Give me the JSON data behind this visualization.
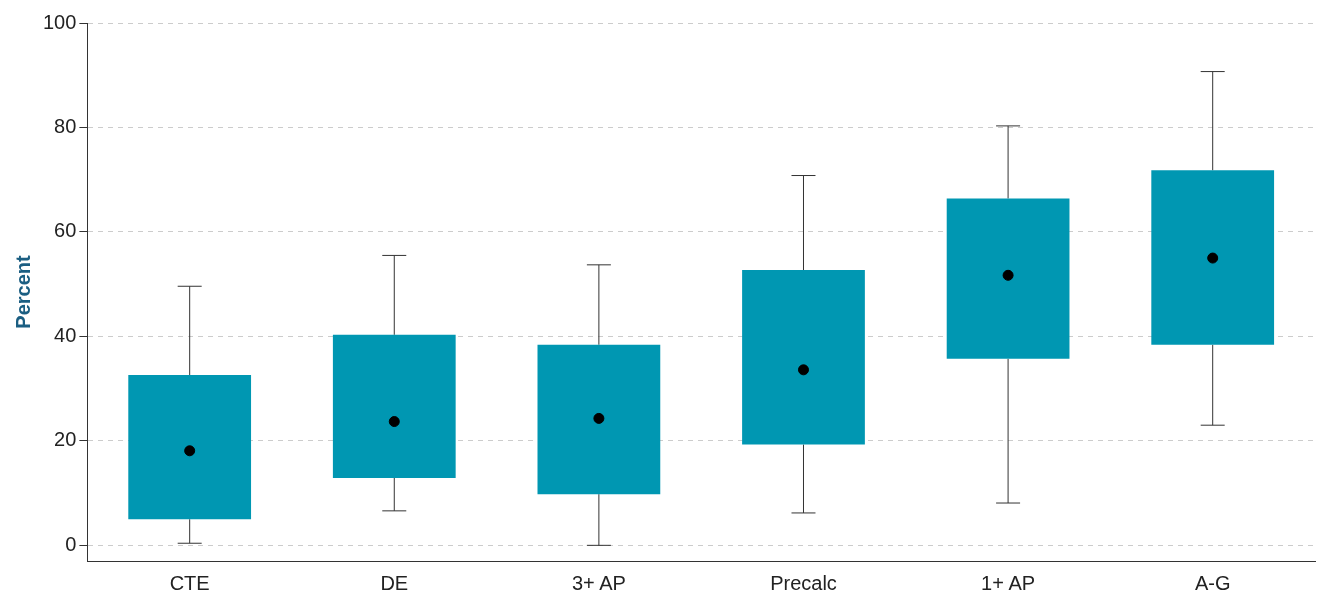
{
  "chart_data": {
    "type": "box",
    "ylabel": "Percent",
    "categories": [
      "CTE",
      "DE",
      "3+ AP",
      "Precalc",
      "1+ AP",
      "A-G"
    ],
    "color": "#0097b2",
    "boxes": [
      {
        "low": 0.4,
        "q1": 5,
        "median": 18.1,
        "q3": 32.6,
        "high": 49.6
      },
      {
        "low": 6.6,
        "q1": 12.9,
        "median": 23.7,
        "q3": 40.3,
        "high": 55.5
      },
      {
        "low": 0,
        "q1": 9.8,
        "median": 24.3,
        "q3": 38.4,
        "high": 53.7
      },
      {
        "low": 6.2,
        "q1": 19.3,
        "median": 33.6,
        "q3": 52.7,
        "high": 70.8
      },
      {
        "low": 8.1,
        "q1": 35.7,
        "median": 51.7,
        "q3": 66.4,
        "high": 80.3
      },
      {
        "low": 23,
        "q1": 38.4,
        "median": 55,
        "q3": 71.8,
        "high": 90.7
      }
    ],
    "ylim": [
      -3,
      100
    ],
    "yticks": [
      0,
      20,
      40,
      60,
      80,
      100
    ],
    "grid": "y",
    "legend": false
  }
}
